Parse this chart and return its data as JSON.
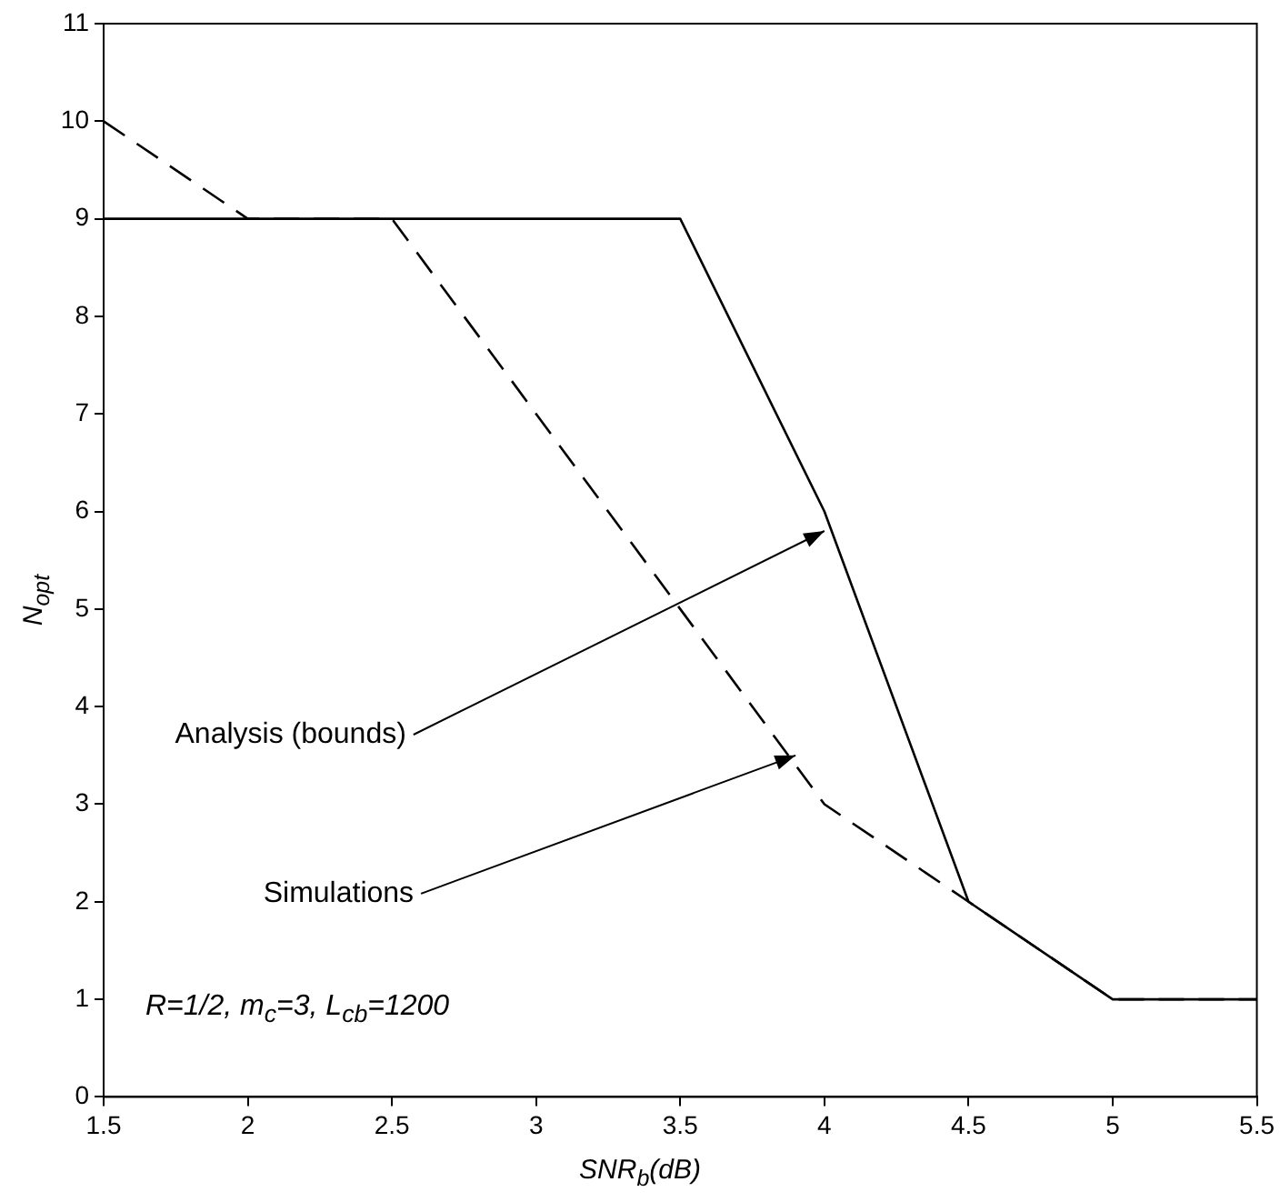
{
  "chart_data": {
    "type": "line",
    "xlabel": "SNR$_{b}$(dB)",
    "ylabel": "N$_{opt}$",
    "x": [
      1.5,
      2,
      2.5,
      3,
      3.5,
      4,
      4.5,
      5,
      5.5
    ],
    "series": [
      {
        "color": "#000000",
        "line_style": "solid",
        "values": [
          9,
          9,
          9,
          9,
          9,
          6,
          2,
          1,
          1
        ]
      },
      {
        "color": "#000000",
        "line_style": "dashed",
        "values": [
          10,
          9,
          9,
          7,
          5,
          3,
          2,
          1,
          1
        ]
      }
    ],
    "xlim": [
      1.5,
      5.5
    ],
    "xticks": [
      1.5,
      2,
      2.5,
      3,
      3.5,
      4,
      4.5,
      5,
      5.5
    ],
    "ylim": [
      0,
      11
    ],
    "yticks": [
      0,
      1,
      2,
      3,
      4,
      5,
      6,
      7,
      8,
      9,
      10,
      11
    ],
    "grid": false,
    "legend": false,
    "marker": "none",
    "annotations": [
      {
        "text": "Analysis (bounds)",
        "x": 4,
        "y": 5.8
      },
      {
        "text": "Simulations",
        "x": 3.9,
        "y": 3.5
      },
      "R=1/2, m$_{c}$=3, L$_{cb}$=1200"
    ]
  }
}
